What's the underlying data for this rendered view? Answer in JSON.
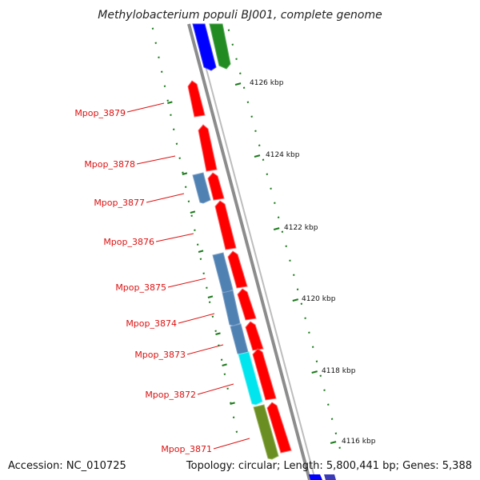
{
  "title": "Methylobacterium populi BJ001, complete genome",
  "footer": {
    "accession": "Accession: NC_010725",
    "summary": "Topology: circular; Length: 5,800,441 bp; Genes: 5,388"
  },
  "genes": [
    {
      "name": "Mpop_3879"
    },
    {
      "name": "Mpop_3878"
    },
    {
      "name": "Mpop_3877"
    },
    {
      "name": "Mpop_3876"
    },
    {
      "name": "Mpop_3875"
    },
    {
      "name": "Mpop_3874"
    },
    {
      "name": "Mpop_3873"
    },
    {
      "name": "Mpop_3872"
    },
    {
      "name": "Mpop_3871"
    }
  ],
  "scale_ticks": [
    "4126 kbp",
    "4124 kbp",
    "4122 kbp",
    "4120 kbp",
    "4118 kbp",
    "4116 kbp"
  ],
  "colors": {
    "forward_cds": "#ff0000",
    "reverse_cds_steelblue": "#4f81b3",
    "reverse_cds_cyan": "#00e5ee",
    "reverse_cds_olive": "#6b8e23",
    "top_blue": "#0000ff",
    "top_green": "#228b22",
    "backbone": "#8c8c8c",
    "ticks": "#1a7a1a",
    "labels": "#dd1111"
  }
}
